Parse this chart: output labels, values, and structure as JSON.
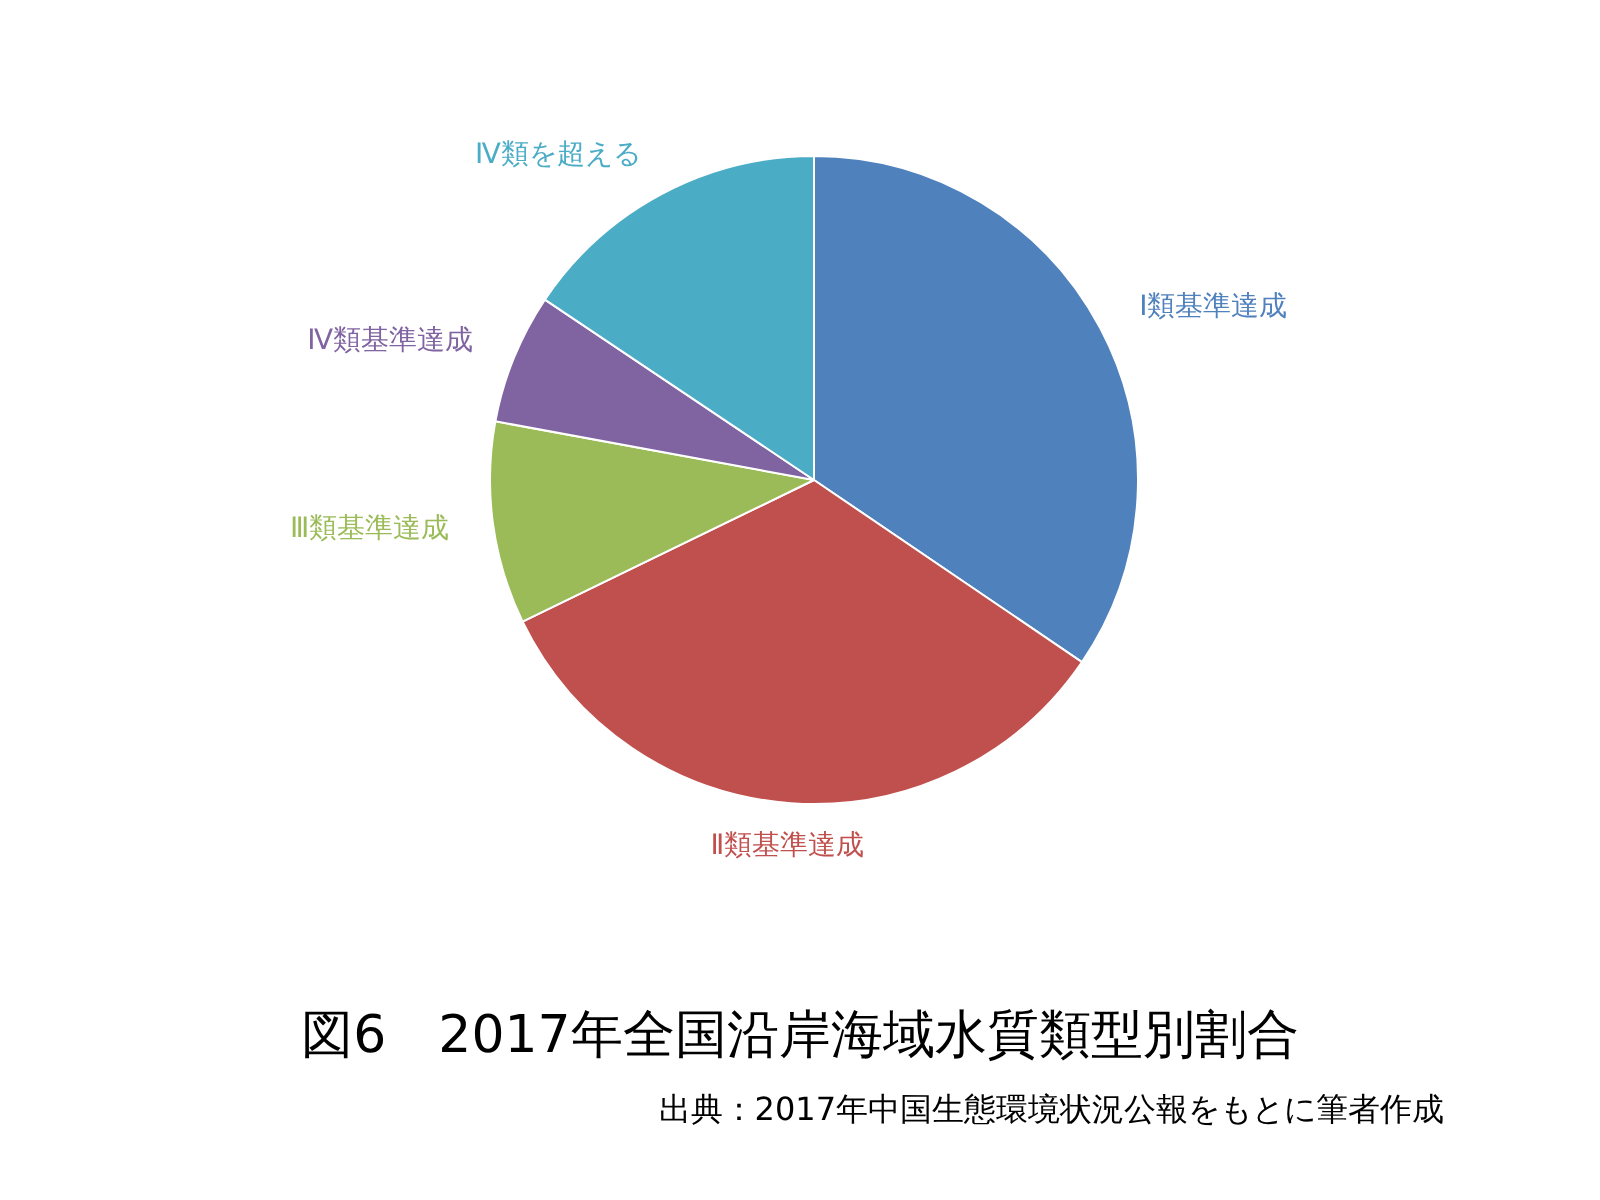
{
  "chart_data": {
    "type": "pie",
    "title": "図6　2017年全国沿岸海域水質類型別割合",
    "categories": [
      "Ⅰ類基準達成",
      "Ⅱ類基準達成",
      "Ⅲ類基準達成",
      "Ⅳ類基準達成",
      "Ⅳ類を超える"
    ],
    "values": [
      34.5,
      33.3,
      10.1,
      6.5,
      15.6
    ],
    "colors": [
      "#4f81bd",
      "#c0504d",
      "#9bbb59",
      "#8064a2",
      "#4bacc6"
    ],
    "legend": false,
    "annotations": [
      "出典：2017年中国生態環境状況公報をもとに筆者作成"
    ]
  }
}
